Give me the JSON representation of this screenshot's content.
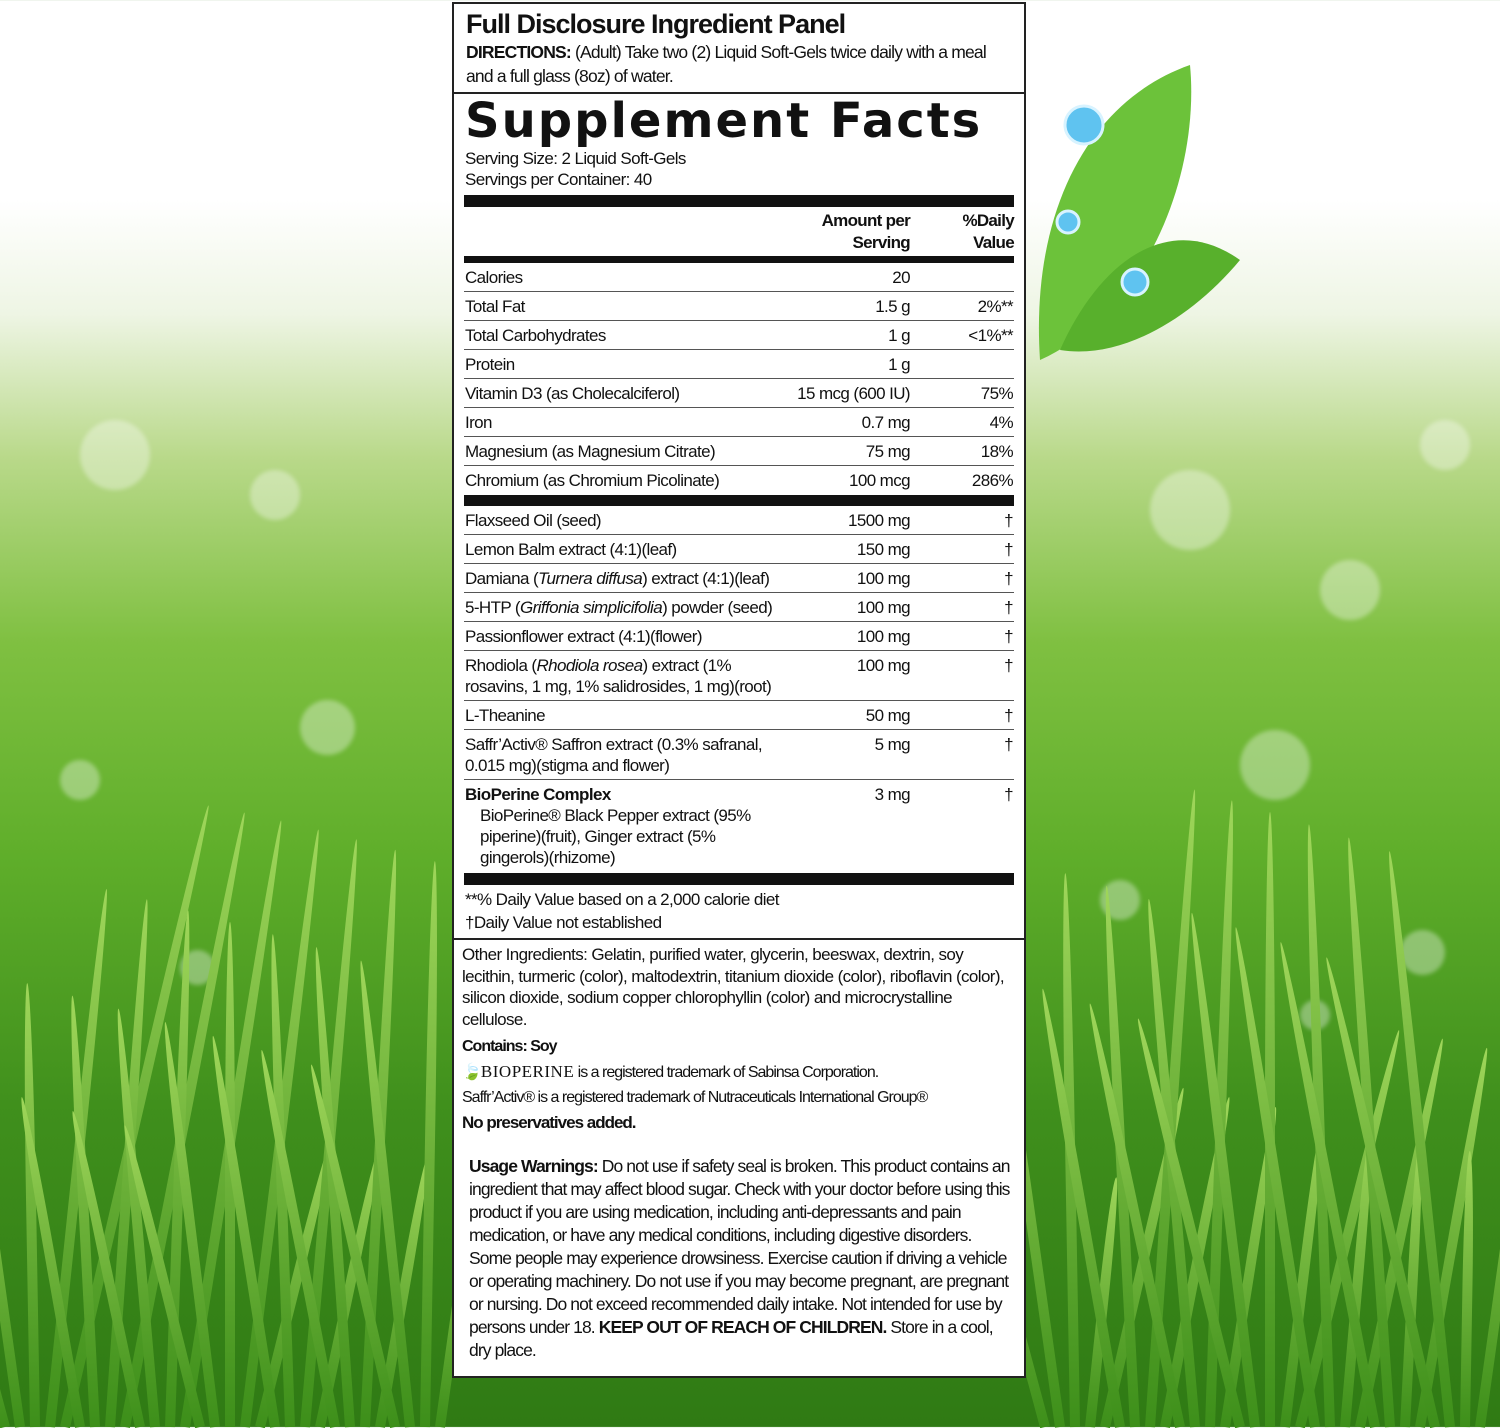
{
  "header": {
    "title": "Full Disclosure Ingredient Panel",
    "directions_label": "DIRECTIONS:",
    "directions_text": " (Adult) Take two (2) Liquid Soft-Gels twice daily with a meal and a full glass (8oz) of water."
  },
  "facts": {
    "title": "Supplement Facts",
    "serving_size": "Serving Size:  2 Liquid Soft-Gels",
    "servings_per_container": "Servings per Container:  40",
    "col_amount": "Amount per Serving",
    "col_dv": "%Daily Value",
    "nutrients": [
      {
        "name": [
          "Calories"
        ],
        "amount": "20",
        "dv": ""
      },
      {
        "name": [
          "Total Fat"
        ],
        "amount": "1.5 g",
        "dv": "2%**"
      },
      {
        "name": [
          "Total Carbohydrates"
        ],
        "amount": "1 g",
        "dv": "<1%**"
      },
      {
        "name": [
          "Protein"
        ],
        "amount": "1 g",
        "dv": ""
      },
      {
        "name": [
          "Vitamin D3 (as Cholecalciferol)"
        ],
        "amount": "15 mcg (600 IU)",
        "dv": "75%"
      },
      {
        "name": [
          "Iron"
        ],
        "amount": "0.7 mg",
        "dv": "4%"
      },
      {
        "name": [
          "Magnesium (as Magnesium Citrate)"
        ],
        "amount": "75 mg",
        "dv": "18%"
      },
      {
        "name": [
          "Chromium (as Chromium Picolinate)"
        ],
        "amount": "100 mcg",
        "dv": "286%"
      }
    ],
    "ingredients": [
      {
        "name": [
          "Flaxseed Oil (seed)"
        ],
        "amount": "1500 mg",
        "dv": "†"
      },
      {
        "name": [
          "Lemon Balm extract (4:1)(leaf)"
        ],
        "amount": "150 mg",
        "dv": "†"
      },
      {
        "name": [
          "Damiana (",
          "Turnera diffusa",
          ") extract (4:1)(leaf)"
        ],
        "amount": "100 mg",
        "dv": "†"
      },
      {
        "name": [
          "5-HTP (",
          "Griffonia simplicifolia",
          ") powder (seed)"
        ],
        "amount": "100 mg",
        "dv": "†"
      },
      {
        "name": [
          "Passionflower extract (4:1)(flower)"
        ],
        "amount": "100 mg",
        "dv": "†"
      },
      {
        "name": [
          "Rhodiola (",
          "Rhodiola rosea",
          ") extract (1% rosavins, 1 mg, 1% salidrosides, 1 mg)(root)"
        ],
        "amount": "100 mg",
        "dv": "†"
      },
      {
        "name": [
          "L-Theanine"
        ],
        "amount": "50 mg",
        "dv": "†"
      },
      {
        "name": [
          "Saffr’Activ® Saffron extract (0.3% safranal, 0.015 mg)(stigma and flower)"
        ],
        "amount": "5 mg",
        "dv": "†"
      }
    ],
    "complex": {
      "title": "BioPerine Complex",
      "detail": "BioPerine® Black Pepper extract (95% piperine)(fruit), Ginger extract (5% gingerols)(rhizome)",
      "amount": "3 mg",
      "dv": "†"
    },
    "footnote_1": "**% Daily Value based on a 2,000 calorie diet",
    "footnote_2": "†Daily Value not established"
  },
  "other": {
    "ingredients": "Other Ingredients:  Gelatin, purified water, glycerin, beeswax, dextrin, soy lecithin, turmeric (color), maltodextrin, titanium dioxide (color), riboflavin (color), silicon dioxide, sodium copper chlorophyllin (color) and microcrystalline cellulose.",
    "contains": "Contains:  Soy",
    "bioperine_logo": "BIOPERINE",
    "bioperine_tm": " is a registered trademark of Sabinsa Corporation.",
    "saffr_tm": "Saffr’Activ® is a registered trademark of Nutraceuticals International Group®",
    "no_preservatives": "No preservatives added."
  },
  "warnings": {
    "label": "Usage Warnings:",
    "text": " Do not use if safety seal is broken. This product contains an ingredient that may affect blood sugar. Check with your doctor before using this product if you are using medication, including anti-depressants and pain medication, or have any medical conditions, including digestive disorders. Some people may experience drowsiness. Exercise caution if driving a vehicle or operating machinery. Do not use if you may become pregnant, are pregnant or nursing. Do not exceed recommended daily intake. Not intended for use by persons under 18. ",
    "bold": "KEEP OUT OF REACH OF CHILDREN.",
    "tail": " Store in a cool, dry place."
  },
  "colors": {
    "leaf": "#5cb82e",
    "grass": "#4a9e22",
    "droplet": "#5fc3f0"
  }
}
